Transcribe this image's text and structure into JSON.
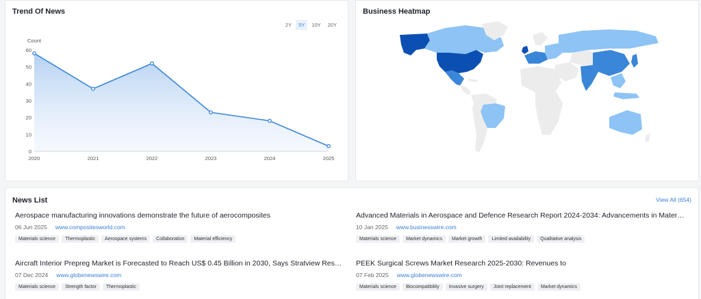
{
  "trend": {
    "title": "Trend Of News",
    "ranges": [
      {
        "label": "2Y",
        "active": false
      },
      {
        "label": "5Y",
        "active": true
      },
      {
        "label": "10Y",
        "active": false
      },
      {
        "label": "20Y",
        "active": false
      }
    ]
  },
  "chart_data": {
    "type": "area",
    "title": "Trend Of News",
    "xlabel": "",
    "ylabel": "Count",
    "x": [
      "2020",
      "2021",
      "2022",
      "2023",
      "2024",
      "2025"
    ],
    "values": [
      58,
      37,
      52,
      23,
      18,
      3
    ],
    "yticks": [
      0,
      10,
      20,
      30,
      40,
      50,
      60
    ],
    "ylim": [
      0,
      60
    ],
    "grid": false,
    "color": "#3a86d8"
  },
  "heatmap": {
    "title": "Business Heatmap",
    "colors": {
      "high": "#0b4fb3",
      "mid": "#3a86d8",
      "low": "#8dc3f5",
      "none": "#ececec"
    }
  },
  "news": {
    "title": "News List",
    "view_all": "View All (654)",
    "items": [
      {
        "title": "Aerospace manufacturing innovations demonstrate the future of aerocomposites",
        "date": "06 Jun 2025",
        "source": "www.compositesworld.com",
        "tags": [
          "Materials science",
          "Thermoplastic",
          "Aerospace systems",
          "Collaboration",
          "Material efficiency"
        ]
      },
      {
        "title": "Advanced Materials in Aerospace and Defence Research Report 2024-2034: Advancements in Materials Science",
        "date": "10 Jan 2025",
        "source": "www.businesswire.com",
        "tags": [
          "Materials science",
          "Market dynamics",
          "Market growth",
          "Limited availability",
          "Qualitative analysis"
        ]
      },
      {
        "title": "Aircraft Interior Prepreg Market is Forecasted to Reach US$ 0.45 Billion in 2030, Says Stratview Research",
        "date": "07 Dec 2024",
        "source": "www.globenewswire.com",
        "tags": [
          "Materials science",
          "Strength factor",
          "Thermoplastic"
        ]
      },
      {
        "title": "PEEK Surgical Screws Market Research 2025-2030: Revenues to",
        "date": "07 Feb 2025",
        "source": "www.globenewswire.com",
        "tags": [
          "Materials science",
          "Biocompatibility",
          "Invasive surgery",
          "Joint replacement",
          "Market dynamics"
        ]
      }
    ]
  }
}
